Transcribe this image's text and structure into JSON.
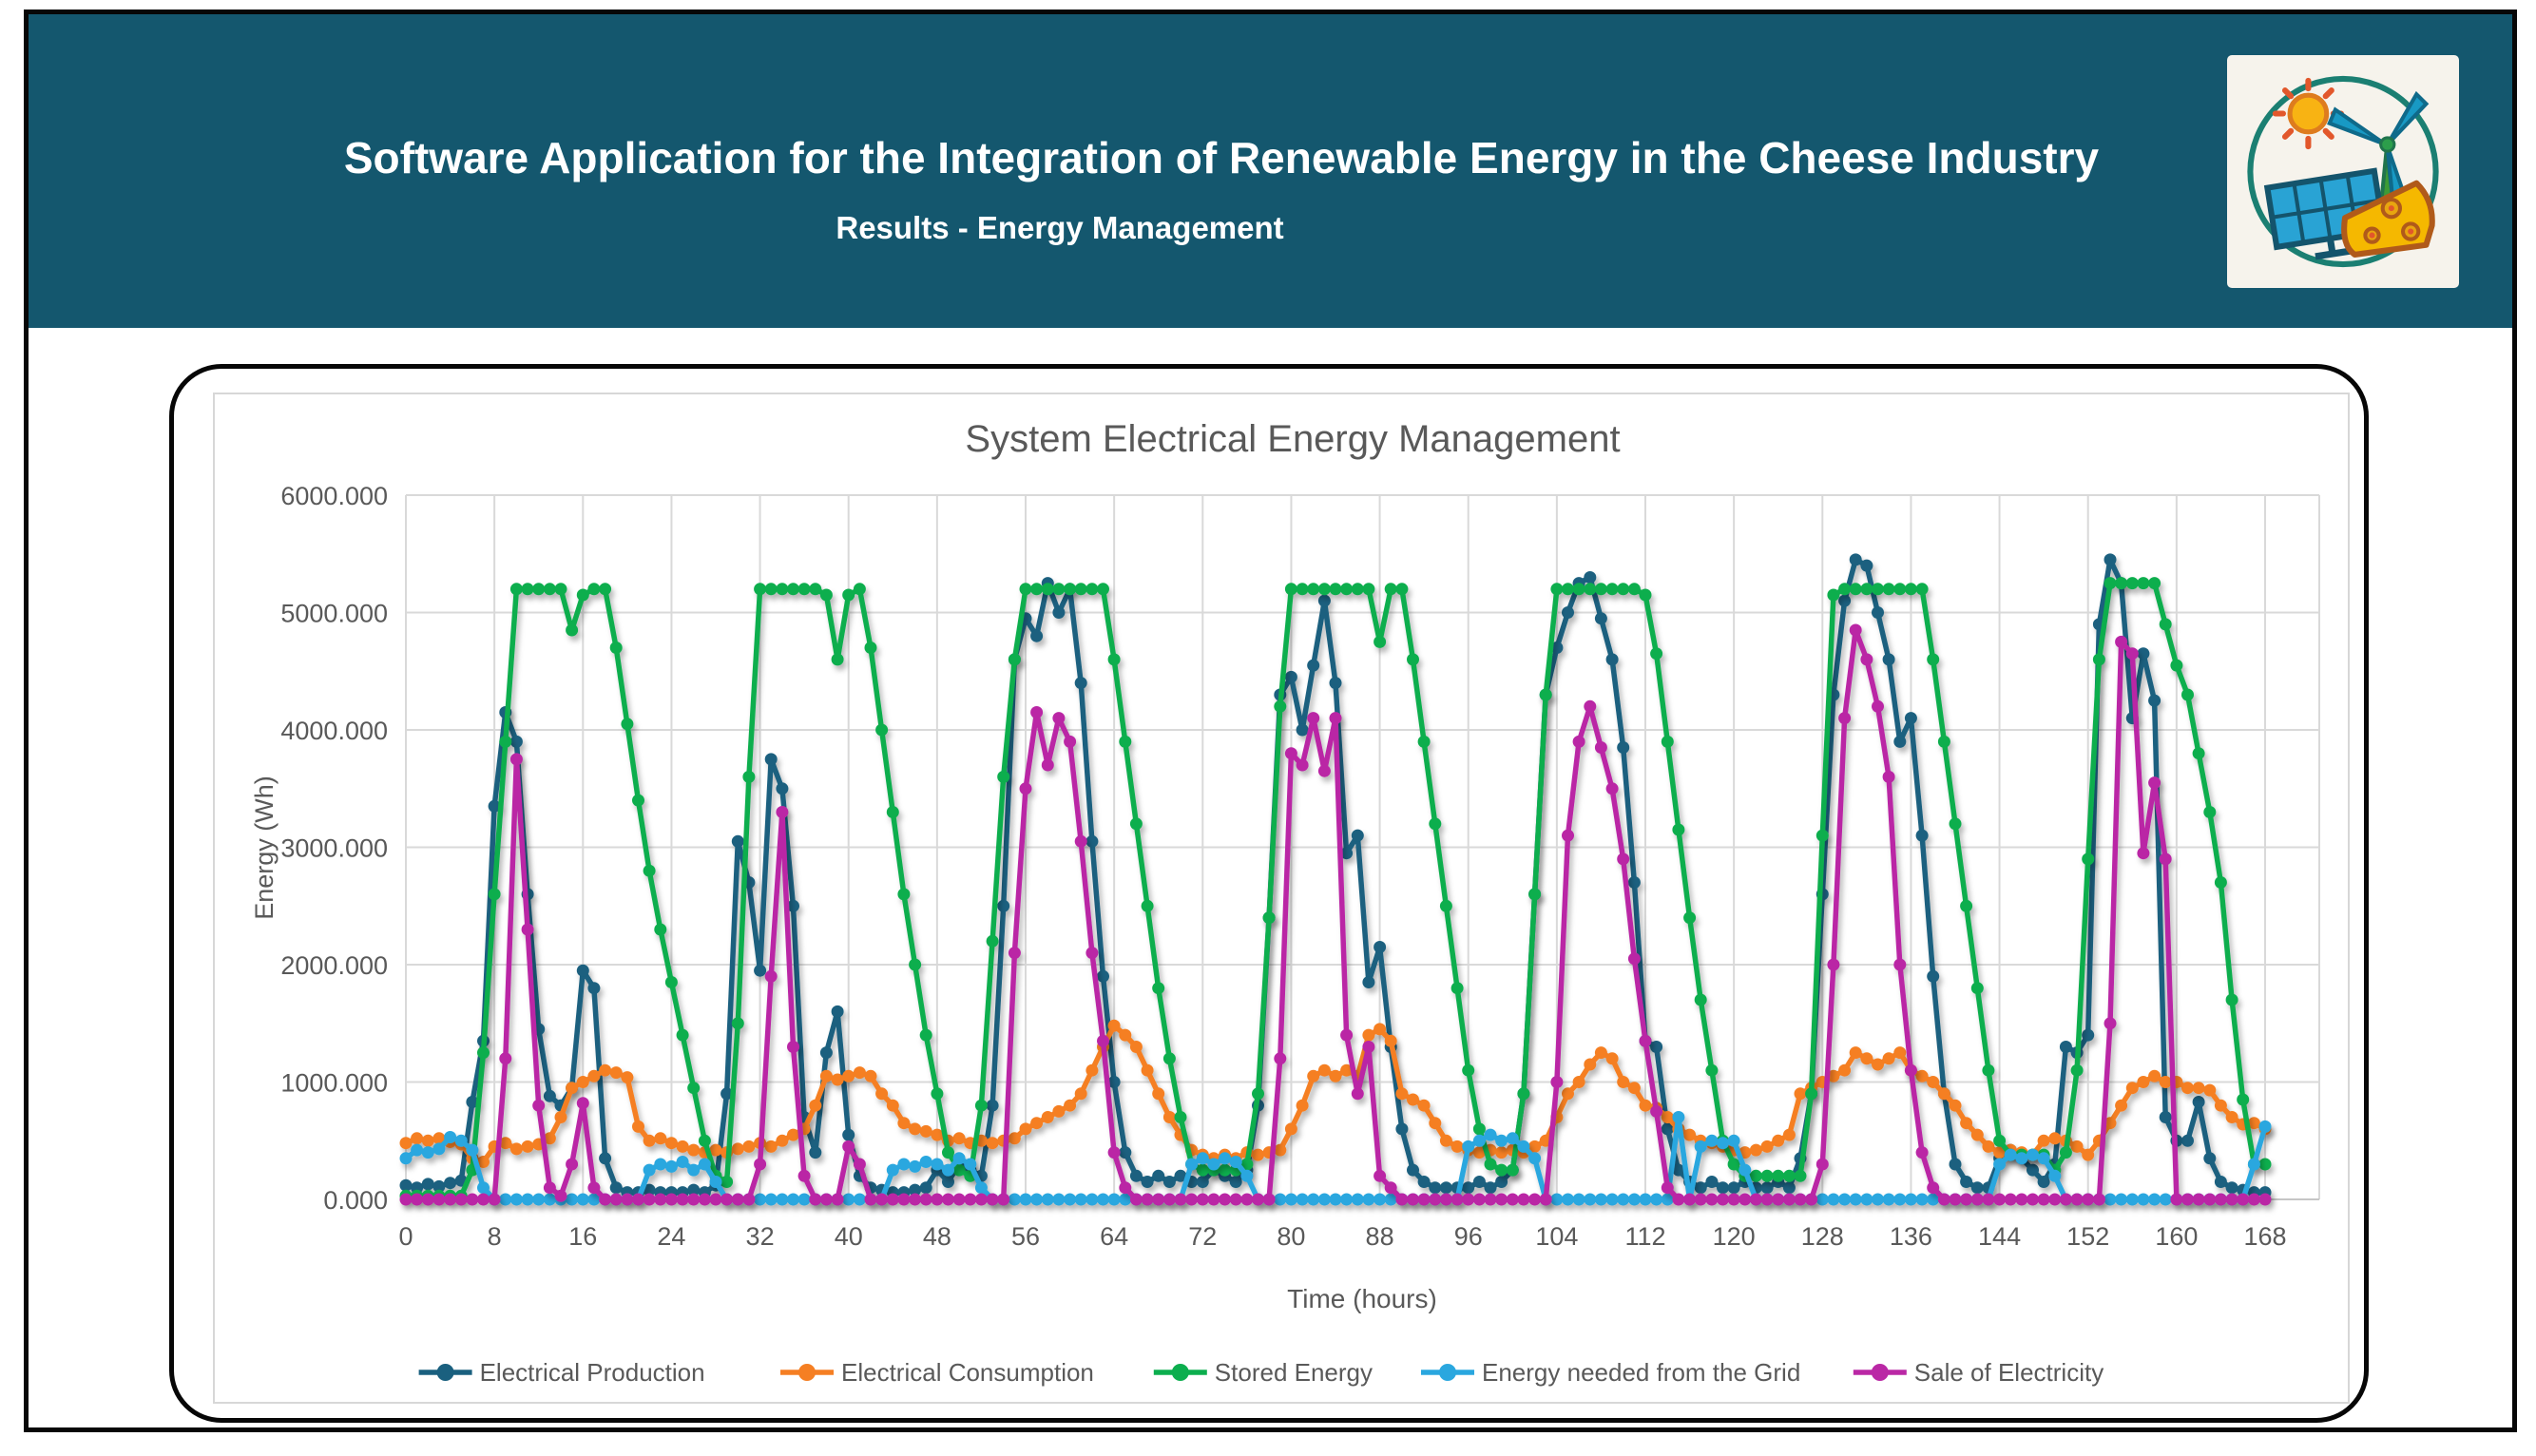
{
  "page": {
    "background": "#FFFFFF",
    "outer_border_color": "#070707"
  },
  "header": {
    "title": "Software Application for the Integration of Renewable Energy in the Cheese Industry",
    "subtitle": "Results - Energy Management",
    "bg_color": "#14576E",
    "text_color": "#FFFFFF",
    "logo_icon": "renewable-energy-cheese-logo"
  },
  "chart_data": {
    "type": "line",
    "title": "System Electrical Energy Management",
    "xlabel": "Time (hours)",
    "ylabel": "Energy (Wh)",
    "xlim": [
      0,
      168
    ],
    "ylim": [
      0,
      6000
    ],
    "x_ticks": [
      0,
      8,
      16,
      24,
      32,
      40,
      48,
      56,
      64,
      72,
      80,
      88,
      96,
      104,
      112,
      120,
      128,
      136,
      144,
      152,
      160,
      168
    ],
    "y_ticks": [
      0,
      1000,
      2000,
      3000,
      4000,
      5000,
      6000
    ],
    "y_tick_labels": [
      "0.000",
      "1000.000",
      "2000.000",
      "3000.000",
      "4000.000",
      "5000.000",
      "6000.000"
    ],
    "grid": true,
    "legend_position": "bottom",
    "marker": "circle",
    "x_step_hours": 1,
    "text_color": "#595959",
    "grid_color": "#D9D9D9",
    "axis_line_color": "#C6C6C6",
    "series": [
      {
        "name": "Electrical Production",
        "color": "#1A607F",
        "values": [
          120,
          100,
          130,
          110,
          140,
          160,
          830,
          1350,
          3350,
          4150,
          3900,
          2600,
          1450,
          880,
          800,
          950,
          1950,
          1800,
          350,
          100,
          60,
          60,
          80,
          60,
          60,
          60,
          80,
          60,
          120,
          900,
          3050,
          2700,
          1950,
          3750,
          3500,
          2500,
          700,
          400,
          1250,
          1600,
          550,
          200,
          100,
          80,
          60,
          60,
          80,
          100,
          250,
          150,
          300,
          250,
          200,
          800,
          2500,
          4600,
          4950,
          4800,
          5250,
          5000,
          5200,
          4400,
          3050,
          1900,
          1000,
          400,
          200,
          150,
          200,
          150,
          200,
          150,
          150,
          250,
          200,
          150,
          250,
          800,
          2400,
          4300,
          4450,
          4000,
          4550,
          5100,
          4400,
          2950,
          3100,
          1850,
          2150,
          1300,
          600,
          250,
          150,
          100,
          100,
          100,
          100,
          150,
          100,
          150,
          250,
          900,
          2600,
          4300,
          4700,
          5000,
          5250,
          5300,
          4950,
          4600,
          3850,
          2700,
          1350,
          1300,
          600,
          250,
          150,
          100,
          150,
          100,
          100,
          150,
          100,
          100,
          150,
          100,
          350,
          900,
          2600,
          4300,
          5100,
          5450,
          5400,
          5000,
          4600,
          3900,
          4100,
          3100,
          1900,
          900,
          300,
          150,
          100,
          100,
          350,
          420,
          350,
          250,
          150,
          300,
          1300,
          1250,
          1400,
          4900,
          5450,
          5250,
          4100,
          4650,
          4250,
          700,
          500,
          500,
          830,
          350,
          150,
          100,
          80,
          60,
          60
        ]
      },
      {
        "name": "Electrical Consumption",
        "color": "#F57F23",
        "values": [
          480,
          520,
          500,
          520,
          490,
          470,
          350,
          320,
          450,
          480,
          430,
          450,
          470,
          520,
          700,
          950,
          1000,
          1050,
          1100,
          1080,
          1040,
          620,
          500,
          520,
          480,
          450,
          420,
          400,
          420,
          400,
          430,
          450,
          480,
          450,
          500,
          550,
          600,
          800,
          1050,
          1020,
          1050,
          1080,
          1050,
          900,
          800,
          650,
          600,
          580,
          550,
          500,
          520,
          480,
          500,
          480,
          500,
          520,
          600,
          650,
          700,
          750,
          800,
          900,
          1100,
          1300,
          1480,
          1400,
          1300,
          1100,
          900,
          700,
          550,
          420,
          380,
          350,
          380,
          350,
          400,
          380,
          400,
          420,
          600,
          800,
          1050,
          1100,
          1050,
          1100,
          1050,
          1400,
          1450,
          1350,
          900,
          850,
          800,
          650,
          500,
          450,
          420,
          400,
          420,
          400,
          420,
          400,
          450,
          500,
          700,
          900,
          1000,
          1150,
          1250,
          1200,
          1000,
          950,
          800,
          780,
          700,
          600,
          550,
          500,
          480,
          450,
          420,
          400,
          420,
          450,
          500,
          550,
          900,
          950,
          1000,
          1050,
          1100,
          1250,
          1200,
          1150,
          1200,
          1250,
          1100,
          1050,
          1000,
          900,
          800,
          650,
          550,
          450,
          400,
          420,
          400,
          380,
          500,
          520,
          500,
          450,
          380,
          500,
          650,
          800,
          950,
          1000,
          1050,
          1000,
          1000,
          950,
          950,
          930,
          800,
          700,
          640,
          650,
          600
        ]
      },
      {
        "name": "Stored Energy",
        "color": "#0CAE4E",
        "values": [
          30,
          30,
          30,
          30,
          30,
          30,
          250,
          1250,
          2600,
          3900,
          5200,
          5200,
          5200,
          5200,
          5200,
          4850,
          5150,
          5200,
          5200,
          4700,
          4050,
          3400,
          2800,
          2300,
          1850,
          1400,
          950,
          500,
          200,
          150,
          1500,
          3600,
          5200,
          5200,
          5200,
          5200,
          5200,
          5200,
          5150,
          4600,
          5150,
          5200,
          4700,
          4000,
          3300,
          2600,
          2000,
          1400,
          900,
          400,
          250,
          200,
          800,
          2200,
          3600,
          4600,
          5200,
          5200,
          5200,
          5200,
          5200,
          5200,
          5200,
          5200,
          4600,
          3900,
          3200,
          2500,
          1800,
          1200,
          700,
          300,
          250,
          250,
          250,
          250,
          300,
          900,
          2400,
          4200,
          5200,
          5200,
          5200,
          5200,
          5200,
          5200,
          5200,
          5200,
          4750,
          5200,
          5200,
          4600,
          3900,
          3200,
          2500,
          1800,
          1100,
          600,
          300,
          250,
          250,
          900,
          2600,
          4300,
          5200,
          5200,
          5200,
          5200,
          5200,
          5200,
          5200,
          5200,
          5150,
          4650,
          3900,
          3150,
          2400,
          1700,
          1100,
          500,
          300,
          200,
          200,
          200,
          200,
          200,
          200,
          900,
          3100,
          5150,
          5200,
          5200,
          5200,
          5200,
          5200,
          5200,
          5200,
          5200,
          4600,
          3900,
          3200,
          2500,
          1800,
          1100,
          500,
          380,
          380,
          380,
          380,
          250,
          400,
          1100,
          2900,
          4600,
          5250,
          5250,
          5250,
          5250,
          5250,
          4900,
          4550,
          4300,
          3800,
          3300,
          2700,
          1700,
          850,
          300,
          300
        ]
      },
      {
        "name": "Energy needed from the Grid",
        "color": "#2AA7DF",
        "values": [
          350,
          420,
          400,
          430,
          530,
          500,
          420,
          100,
          0,
          0,
          0,
          0,
          0,
          0,
          0,
          0,
          0,
          0,
          0,
          0,
          0,
          0,
          250,
          300,
          280,
          320,
          250,
          300,
          150,
          0,
          0,
          0,
          0,
          0,
          0,
          0,
          0,
          0,
          0,
          0,
          0,
          0,
          0,
          0,
          250,
          300,
          280,
          320,
          300,
          250,
          350,
          300,
          100,
          0,
          0,
          0,
          0,
          0,
          0,
          0,
          0,
          0,
          0,
          0,
          0,
          0,
          0,
          0,
          0,
          0,
          0,
          300,
          350,
          300,
          350,
          320,
          200,
          0,
          0,
          0,
          0,
          0,
          0,
          0,
          0,
          0,
          0,
          0,
          0,
          0,
          0,
          0,
          0,
          0,
          0,
          0,
          450,
          500,
          550,
          500,
          520,
          450,
          350,
          0,
          0,
          0,
          0,
          0,
          0,
          0,
          0,
          0,
          0,
          0,
          0,
          700,
          0,
          450,
          500,
          480,
          500,
          250,
          0,
          0,
          0,
          0,
          0,
          0,
          0,
          0,
          0,
          0,
          0,
          0,
          0,
          0,
          0,
          0,
          0,
          0,
          0,
          0,
          0,
          0,
          300,
          380,
          350,
          380,
          350,
          200,
          0,
          0,
          0,
          0,
          0,
          0,
          0,
          0,
          0,
          0,
          0,
          0,
          0,
          0,
          0,
          0,
          0,
          300,
          620
        ]
      },
      {
        "name": "Sale of Electricity",
        "color": "#BA28A5",
        "values": [
          0,
          0,
          0,
          0,
          0,
          0,
          0,
          0,
          0,
          1200,
          3750,
          2300,
          800,
          100,
          30,
          300,
          820,
          100,
          0,
          0,
          0,
          0,
          0,
          0,
          0,
          0,
          0,
          0,
          0,
          0,
          0,
          0,
          300,
          1900,
          3300,
          1300,
          200,
          0,
          0,
          0,
          450,
          300,
          0,
          0,
          0,
          0,
          0,
          0,
          0,
          0,
          0,
          0,
          0,
          0,
          0,
          2100,
          3500,
          4150,
          3700,
          4100,
          3900,
          3050,
          2100,
          1350,
          400,
          100,
          0,
          0,
          0,
          0,
          0,
          0,
          0,
          0,
          0,
          0,
          0,
          0,
          0,
          1200,
          3800,
          3700,
          4100,
          3650,
          4100,
          1400,
          900,
          1300,
          200,
          100,
          0,
          0,
          0,
          0,
          0,
          0,
          0,
          0,
          0,
          0,
          0,
          0,
          0,
          0,
          1000,
          3100,
          3900,
          4200,
          3850,
          3500,
          2900,
          2050,
          1350,
          750,
          100,
          0,
          0,
          0,
          0,
          0,
          0,
          0,
          0,
          0,
          0,
          0,
          0,
          0,
          300,
          2000,
          4100,
          4850,
          4600,
          4200,
          3600,
          2000,
          1100,
          400,
          100,
          0,
          0,
          0,
          0,
          0,
          0,
          0,
          0,
          0,
          0,
          0,
          0,
          0,
          0,
          0,
          1500,
          4750,
          4650,
          2950,
          3550,
          2900,
          0,
          0,
          0,
          0,
          0,
          0,
          0,
          0,
          0
        ]
      }
    ]
  }
}
